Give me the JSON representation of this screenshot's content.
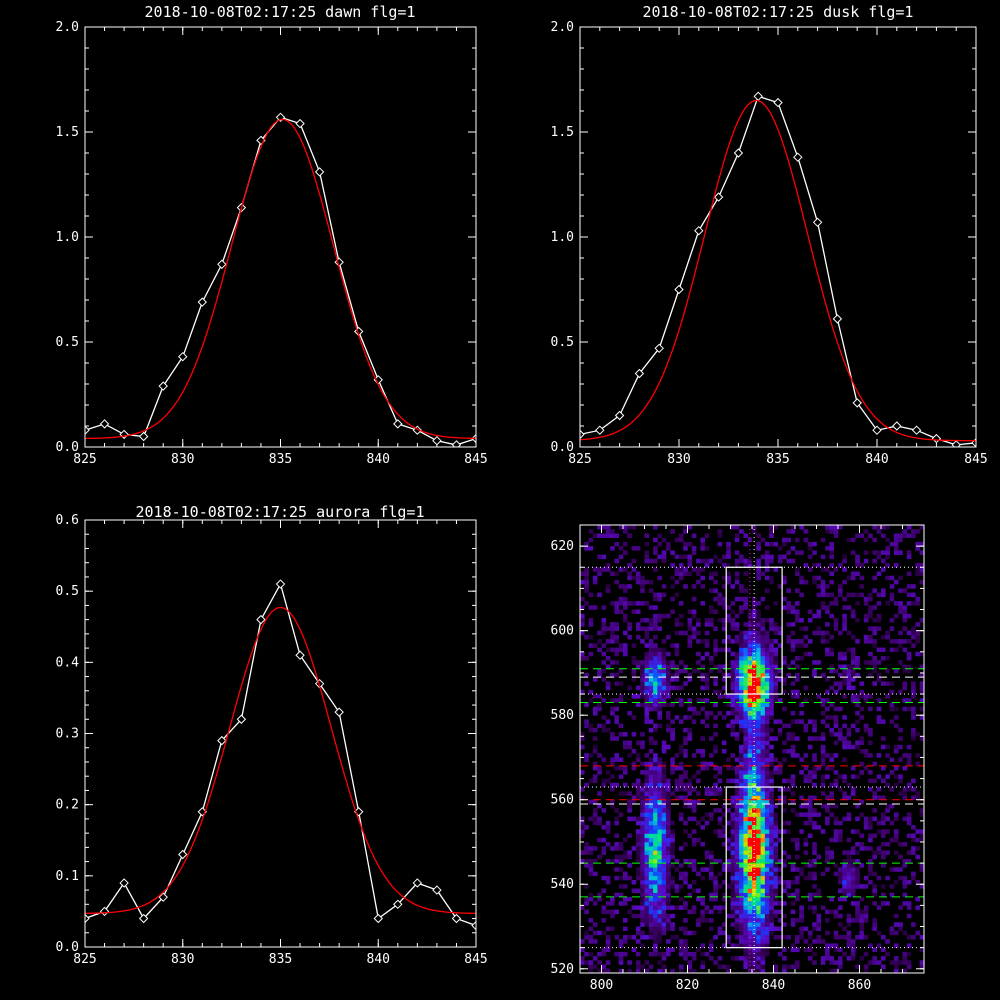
{
  "chart_data": [
    {
      "type": "line",
      "title": "2018-10-08T02:17:25 dawn flg=1",
      "xlim": [
        825,
        845
      ],
      "ylim": [
        0,
        2.0
      ],
      "xticks": [
        "825",
        "830",
        "835",
        "840",
        "845"
      ],
      "yticks": [
        "0.0",
        "0.5",
        "1.0",
        "1.5",
        "2.0"
      ],
      "series": [
        {
          "color": "#ffffff",
          "marker": "diamond",
          "x": [
            825,
            826,
            827,
            828,
            829,
            830,
            831,
            832,
            833,
            834,
            835,
            836,
            837,
            838,
            839,
            840,
            841,
            842,
            843,
            844,
            845
          ],
          "y": [
            0.08,
            0.11,
            0.06,
            0.05,
            0.29,
            0.43,
            0.69,
            0.87,
            1.14,
            1.46,
            1.57,
            1.54,
            1.31,
            0.88,
            0.55,
            0.32,
            0.11,
            0.08,
            0.03,
            0.01,
            0.04
          ]
        },
        {
          "color": "#ff0000",
          "fit": "gaussian",
          "amplitude": 1.52,
          "center": 835.1,
          "sigma": 2.6,
          "offset": 0.04
        }
      ]
    },
    {
      "type": "line",
      "title": "2018-10-08T02:17:25 dusk flg=1",
      "xlim": [
        825,
        845
      ],
      "ylim": [
        0,
        2.0
      ],
      "xticks": [
        "825",
        "830",
        "835",
        "840",
        "845"
      ],
      "yticks": [
        "0.0",
        "0.5",
        "1.0",
        "1.5",
        "2.0"
      ],
      "series": [
        {
          "color": "#ffffff",
          "marker": "diamond",
          "x": [
            825,
            826,
            827,
            828,
            829,
            830,
            831,
            832,
            833,
            834,
            835,
            836,
            837,
            838,
            839,
            840,
            841,
            842,
            843,
            844,
            845
          ],
          "y": [
            0.06,
            0.08,
            0.15,
            0.35,
            0.47,
            0.75,
            1.03,
            1.19,
            1.4,
            1.67,
            1.64,
            1.38,
            1.07,
            0.61,
            0.21,
            0.08,
            0.1,
            0.08,
            0.04,
            0.01,
            0.02
          ]
        },
        {
          "color": "#ff0000",
          "fit": "gaussian",
          "amplitude": 1.62,
          "center": 833.9,
          "sigma": 2.6,
          "offset": 0.03
        }
      ]
    },
    {
      "type": "line",
      "title": "2018-10-08T02:17:25 aurora flg=1",
      "xlim": [
        825,
        845
      ],
      "ylim": [
        0,
        0.6
      ],
      "xticks": [
        "825",
        "830",
        "835",
        "840",
        "845"
      ],
      "yticks": [
        "0.0",
        "0.1",
        "0.2",
        "0.3",
        "0.4",
        "0.5",
        "0.6"
      ],
      "series": [
        {
          "color": "#ffffff",
          "marker": "diamond",
          "x": [
            825,
            826,
            827,
            828,
            829,
            830,
            831,
            832,
            833,
            834,
            835,
            836,
            837,
            838,
            839,
            840,
            841,
            842,
            843,
            844,
            845
          ],
          "y": [
            0.04,
            0.05,
            0.09,
            0.04,
            0.07,
            0.13,
            0.19,
            0.29,
            0.32,
            0.46,
            0.51,
            0.41,
            0.37,
            0.33,
            0.19,
            0.04,
            0.06,
            0.09,
            0.08,
            0.04,
            0.03
          ]
        },
        {
          "color": "#ff0000",
          "fit": "gaussian",
          "amplitude": 0.43,
          "center": 835.0,
          "sigma": 2.6,
          "offset": 0.047
        }
      ]
    },
    {
      "type": "heatmap",
      "title": "",
      "xlim": [
        795,
        875
      ],
      "ylim": [
        519,
        625
      ],
      "xticks": [
        "800",
        "820",
        "840",
        "860"
      ],
      "yticks": [
        "520",
        "540",
        "560",
        "580",
        "600",
        "620"
      ],
      "colormap": "rainbow",
      "blobs": [
        {
          "x": 835,
          "y": 587,
          "wx": 2.5,
          "wy": 5,
          "amp": 1.0
        },
        {
          "x": 835,
          "y": 547,
          "wx": 2.5,
          "wy": 12,
          "amp": 0.85
        },
        {
          "x": 835,
          "y": 569,
          "wx": 1.5,
          "wy": 25,
          "amp": 0.2
        },
        {
          "x": 812,
          "y": 588,
          "wx": 1.8,
          "wy": 4,
          "amp": 0.5
        },
        {
          "x": 812,
          "y": 548,
          "wx": 2.0,
          "wy": 11,
          "amp": 0.55
        },
        {
          "x": 857,
          "y": 541,
          "wx": 1.5,
          "wy": 3,
          "amp": 0.25
        },
        {
          "x": 857,
          "y": 589,
          "wx": 1.2,
          "wy": 2,
          "amp": 0.15
        }
      ],
      "boxes": [
        {
          "x0": 829,
          "x1": 842,
          "y0": 585,
          "y1": 615,
          "color": "#ffffff"
        },
        {
          "x0": 829,
          "x1": 842,
          "y0": 525,
          "y1": 563,
          "color": "#ffffff"
        }
      ],
      "hlines": [
        {
          "y": 615,
          "color": "#ffffff",
          "style": "dotted"
        },
        {
          "y": 591,
          "color": "#00ff00",
          "style": "dashed"
        },
        {
          "y": 589,
          "color": "#ffffff",
          "style": "dashed"
        },
        {
          "y": 585,
          "color": "#ffffff",
          "style": "dotted"
        },
        {
          "y": 583,
          "color": "#00ff00",
          "style": "dashed"
        },
        {
          "y": 568,
          "color": "#ff0000",
          "style": "dashed"
        },
        {
          "y": 563,
          "color": "#ffffff",
          "style": "dotted"
        },
        {
          "y": 560,
          "color": "#ff0000",
          "style": "dashed"
        },
        {
          "y": 559,
          "color": "#ffffff",
          "style": "dashed"
        },
        {
          "y": 545,
          "color": "#00ff00",
          "style": "dashed"
        },
        {
          "y": 537,
          "color": "#00ff00",
          "style": "dashed"
        },
        {
          "y": 525,
          "color": "#ffffff",
          "style": "dotted"
        }
      ],
      "vlines": [
        {
          "x": 834.5,
          "color": "#ff00ff",
          "style": "dotted"
        },
        {
          "x": 835.5,
          "color": "#ffffff",
          "style": "dotted"
        }
      ]
    }
  ]
}
